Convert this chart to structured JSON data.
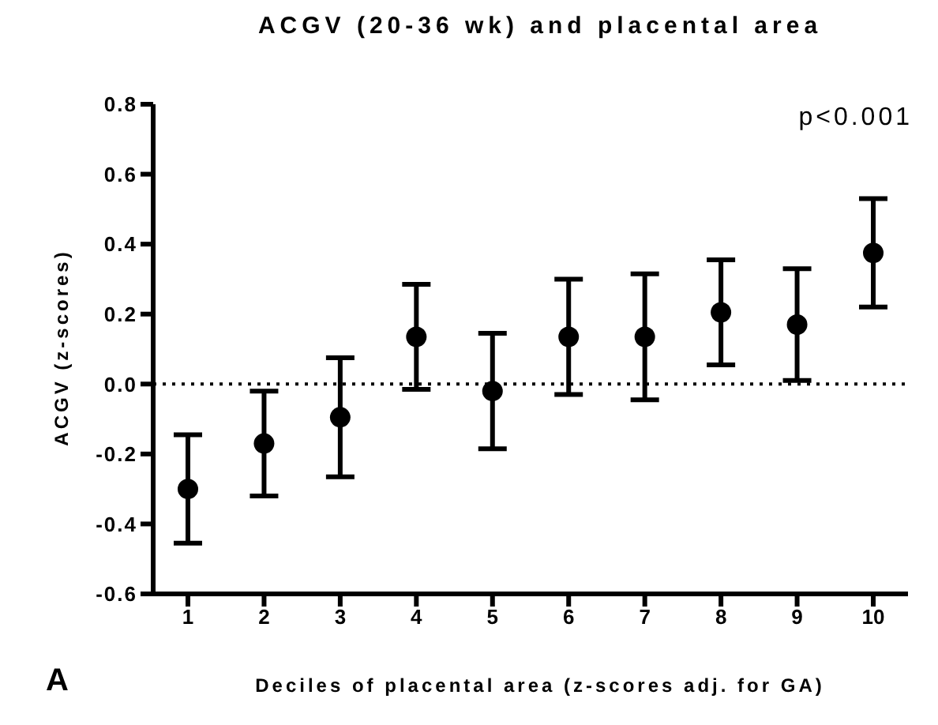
{
  "chart_data": {
    "type": "scatter",
    "title": "ACGV (20-36 wk) and placental area",
    "xlabel": "Deciles of placental area (z-scores adj. for GA)",
    "ylabel": "ACGV (z-scores)",
    "categories": [
      "1",
      "2",
      "3",
      "4",
      "5",
      "6",
      "7",
      "8",
      "9",
      "10"
    ],
    "series": [
      {
        "color": "#000000",
        "values": [
          -0.3,
          -0.17,
          -0.095,
          0.135,
          -0.02,
          0.135,
          0.135,
          0.205,
          0.17,
          0.375
        ],
        "errors": [
          0.155,
          0.15,
          0.17,
          0.15,
          0.165,
          0.165,
          0.18,
          0.15,
          0.16,
          0.155
        ]
      }
    ],
    "ylim": [
      -0.6,
      0.8
    ],
    "yticks": [
      {
        "value": -0.6,
        "label": "-0.6"
      },
      {
        "value": -0.4,
        "label": "-0.4"
      },
      {
        "value": -0.2,
        "label": "-0.2"
      },
      {
        "value": 0,
        "label": "0.0"
      },
      {
        "value": 0.2,
        "label": "0.2"
      },
      {
        "value": 0.4,
        "label": "0.4"
      },
      {
        "value": 0.6,
        "label": "0.6"
      },
      {
        "value": 0.8,
        "label": "0.8"
      }
    ],
    "ref_lines": [
      {
        "axis": "y",
        "value": 0,
        "line_style": "dotted",
        "color": "#000000"
      }
    ],
    "annotations": [
      "p<0.001",
      "A"
    ],
    "marker": "circle",
    "grid": false
  }
}
